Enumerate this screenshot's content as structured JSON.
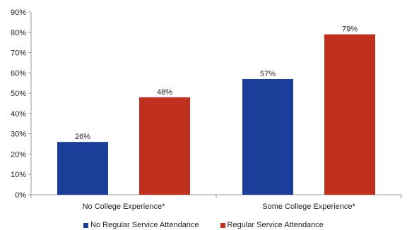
{
  "chart_data": {
    "type": "bar",
    "categories": [
      "No College Experience*",
      "Some College Experience*"
    ],
    "series": [
      {
        "name": "No Regular Service Attendance",
        "values": [
          26,
          57
        ],
        "labels": [
          "26%",
          "57%"
        ],
        "color": "#1b3f99"
      },
      {
        "name": "Regular Service Attendance",
        "values": [
          48,
          79
        ],
        "labels": [
          "48%",
          "79%"
        ],
        "color": "#c0301e"
      }
    ],
    "ylim": [
      0,
      90
    ],
    "yticks": [
      0,
      10,
      20,
      30,
      40,
      50,
      60,
      70,
      80,
      90
    ],
    "ytick_labels": [
      "0%",
      "10%",
      "20%",
      "30%",
      "40%",
      "50%",
      "60%",
      "70%",
      "80%",
      "90%"
    ],
    "grid": false,
    "legend_position": "bottom"
  }
}
